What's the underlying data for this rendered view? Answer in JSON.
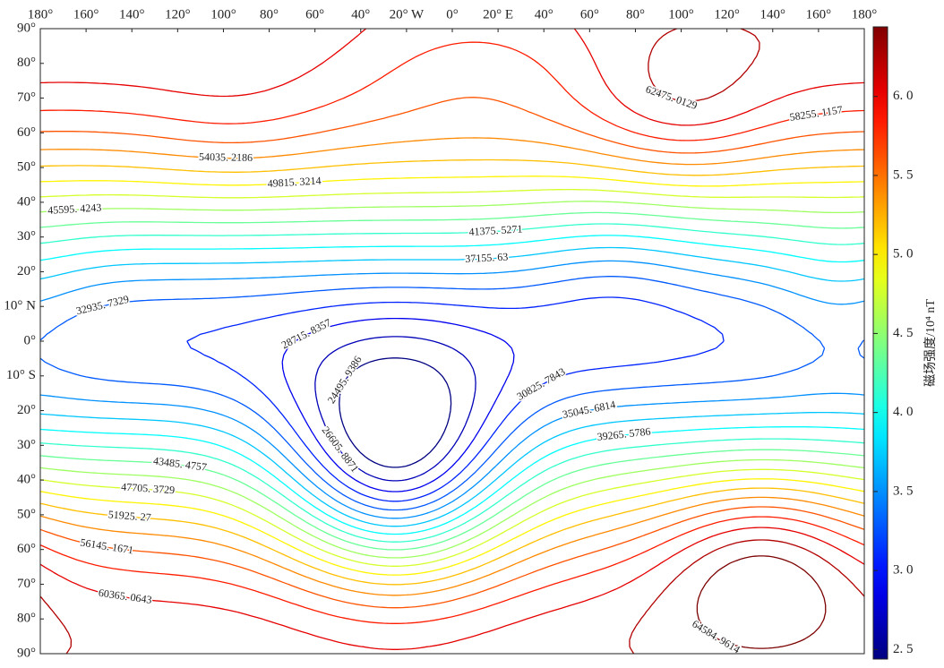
{
  "chart_data": {
    "type": "contour",
    "colormap": "jet",
    "colorbar_label": "磁场强度/10⁴ nT",
    "xlim": [
      -180,
      180
    ],
    "ylim": [
      -90,
      90
    ],
    "xticks": [
      {
        "value": -180,
        "label": "180°"
      },
      {
        "value": -160,
        "label": "160°"
      },
      {
        "value": -140,
        "label": "140°"
      },
      {
        "value": -120,
        "label": "120°"
      },
      {
        "value": -100,
        "label": "100°"
      },
      {
        "value": -80,
        "label": "80°"
      },
      {
        "value": -60,
        "label": "60°"
      },
      {
        "value": -40,
        "label": "40°"
      },
      {
        "value": -20,
        "label": "20° W"
      },
      {
        "value": 0,
        "label": "0°"
      },
      {
        "value": 20,
        "label": "20° E"
      },
      {
        "value": 40,
        "label": "40°"
      },
      {
        "value": 60,
        "label": "60°"
      },
      {
        "value": 80,
        "label": "80°"
      },
      {
        "value": 100,
        "label": "100°"
      },
      {
        "value": 120,
        "label": "120°"
      },
      {
        "value": 140,
        "label": "140°"
      },
      {
        "value": 160,
        "label": "160°"
      },
      {
        "value": 180,
        "label": "180°"
      }
    ],
    "yticks": [
      {
        "value": 90,
        "label": "90°"
      },
      {
        "value": 80,
        "label": "80°"
      },
      {
        "value": 70,
        "label": "70°"
      },
      {
        "value": 60,
        "label": "60°"
      },
      {
        "value": 50,
        "label": "50°"
      },
      {
        "value": 40,
        "label": "40°"
      },
      {
        "value": 30,
        "label": "30°"
      },
      {
        "value": 20,
        "label": "20°"
      },
      {
        "value": 10,
        "label": "10° N"
      },
      {
        "value": 0,
        "label": "0°"
      },
      {
        "value": -10,
        "label": "10° S"
      },
      {
        "value": -20,
        "label": "20°"
      },
      {
        "value": -30,
        "label": "30°"
      },
      {
        "value": -40,
        "label": "40°"
      },
      {
        "value": -50,
        "label": "50°"
      },
      {
        "value": -60,
        "label": "60°"
      },
      {
        "value": -70,
        "label": "70°"
      },
      {
        "value": -80,
        "label": "80°"
      },
      {
        "value": -90,
        "label": "90°"
      }
    ],
    "levels": [
      {
        "value": 24495.9386,
        "label": "24495. 9386"
      },
      {
        "value": 26605.8871,
        "label": "26605. 8871"
      },
      {
        "value": 28715.8357,
        "label": "28715. 8357"
      },
      {
        "value": 30825.7843,
        "label": "30825. 7843"
      },
      {
        "value": 32935.7329,
        "label": "32935. 7329"
      },
      {
        "value": 35045.6814,
        "label": "35045. 6814"
      },
      {
        "value": 37155.63,
        "label": "37155. 63"
      },
      {
        "value": 39265.5786,
        "label": "39265. 5786"
      },
      {
        "value": 41375.5271,
        "label": "41375. 5271"
      },
      {
        "value": 43485.4757,
        "label": "43485. 4757"
      },
      {
        "value": 45595.4243,
        "label": "45595. 4243"
      },
      {
        "value": 47705.3729,
        "label": "47705. 3729"
      },
      {
        "value": 49815.3214,
        "label": "49815. 3214"
      },
      {
        "value": 51925.27,
        "label": "51925. 27"
      },
      {
        "value": 54035.2186,
        "label": "54035. 2186"
      },
      {
        "value": 56145.1671,
        "label": "56145. 1671"
      },
      {
        "value": 58255.1157,
        "label": "58255. 1157"
      },
      {
        "value": 60365.0643,
        "label": "60365. 0643"
      },
      {
        "value": 62475.0129,
        "label": "62475. 0129"
      },
      {
        "value": 64584.9614,
        "label": "64584. 9614"
      }
    ],
    "colorbar": {
      "lim": [
        2.44,
        6.44
      ],
      "ticks": [
        {
          "value": 2.5,
          "label": "2. 5"
        },
        {
          "value": 3.0,
          "label": "3. 0"
        },
        {
          "value": 3.5,
          "label": "3. 5"
        },
        {
          "value": 4.0,
          "label": "4. 0"
        },
        {
          "value": 4.5,
          "label": "4. 5"
        },
        {
          "value": 5.0,
          "label": "5. 0"
        },
        {
          "value": 5.5,
          "label": "5. 5"
        },
        {
          "value": 6.0,
          "label": "6. 0"
        }
      ]
    }
  }
}
